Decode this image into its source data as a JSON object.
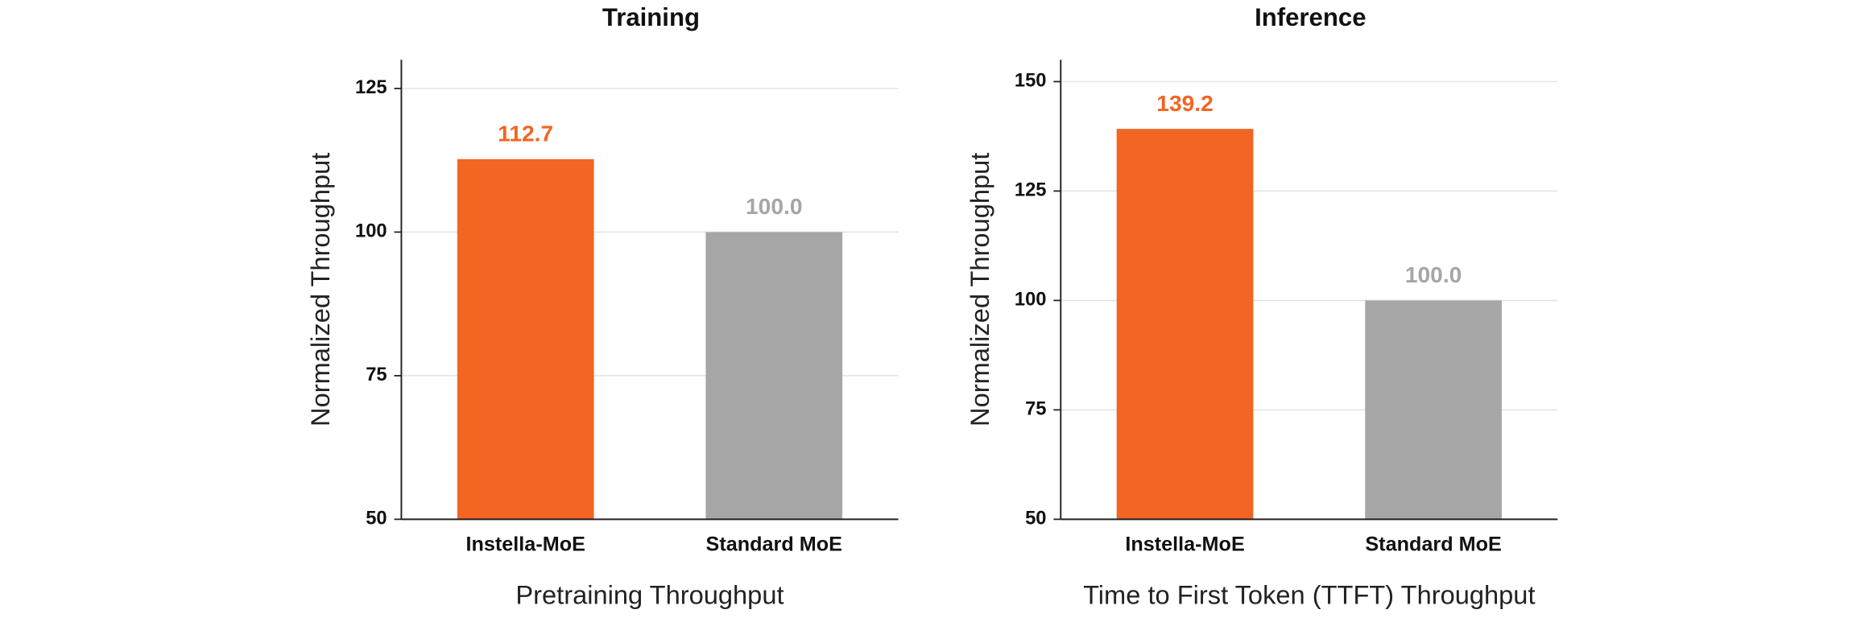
{
  "chart_data": [
    {
      "type": "bar",
      "title": "Training",
      "xlabel": "Pretraining Throughput",
      "ylabel": "Normalized Throughput",
      "categories": [
        "Instella-MoE",
        "Standard MoE"
      ],
      "values": [
        112.7,
        100.0
      ],
      "value_labels": [
        "112.7",
        "100.0"
      ],
      "colors": [
        "#f26522",
        "#a6a6a6"
      ],
      "ylim": [
        50,
        130
      ],
      "yticks": [
        50,
        75,
        100,
        125
      ],
      "grid": true
    },
    {
      "type": "bar",
      "title": "Inference",
      "xlabel": "Time to First Token (TTFT) Throughput",
      "ylabel": "Normalized Throughput",
      "categories": [
        "Instella-MoE",
        "Standard MoE"
      ],
      "values": [
        139.2,
        100.0
      ],
      "value_labels": [
        "139.2",
        "100.0"
      ],
      "colors": [
        "#f26522",
        "#a6a6a6"
      ],
      "ylim": [
        50,
        155
      ],
      "yticks": [
        50,
        75,
        100,
        125,
        150
      ],
      "grid": true
    }
  ]
}
